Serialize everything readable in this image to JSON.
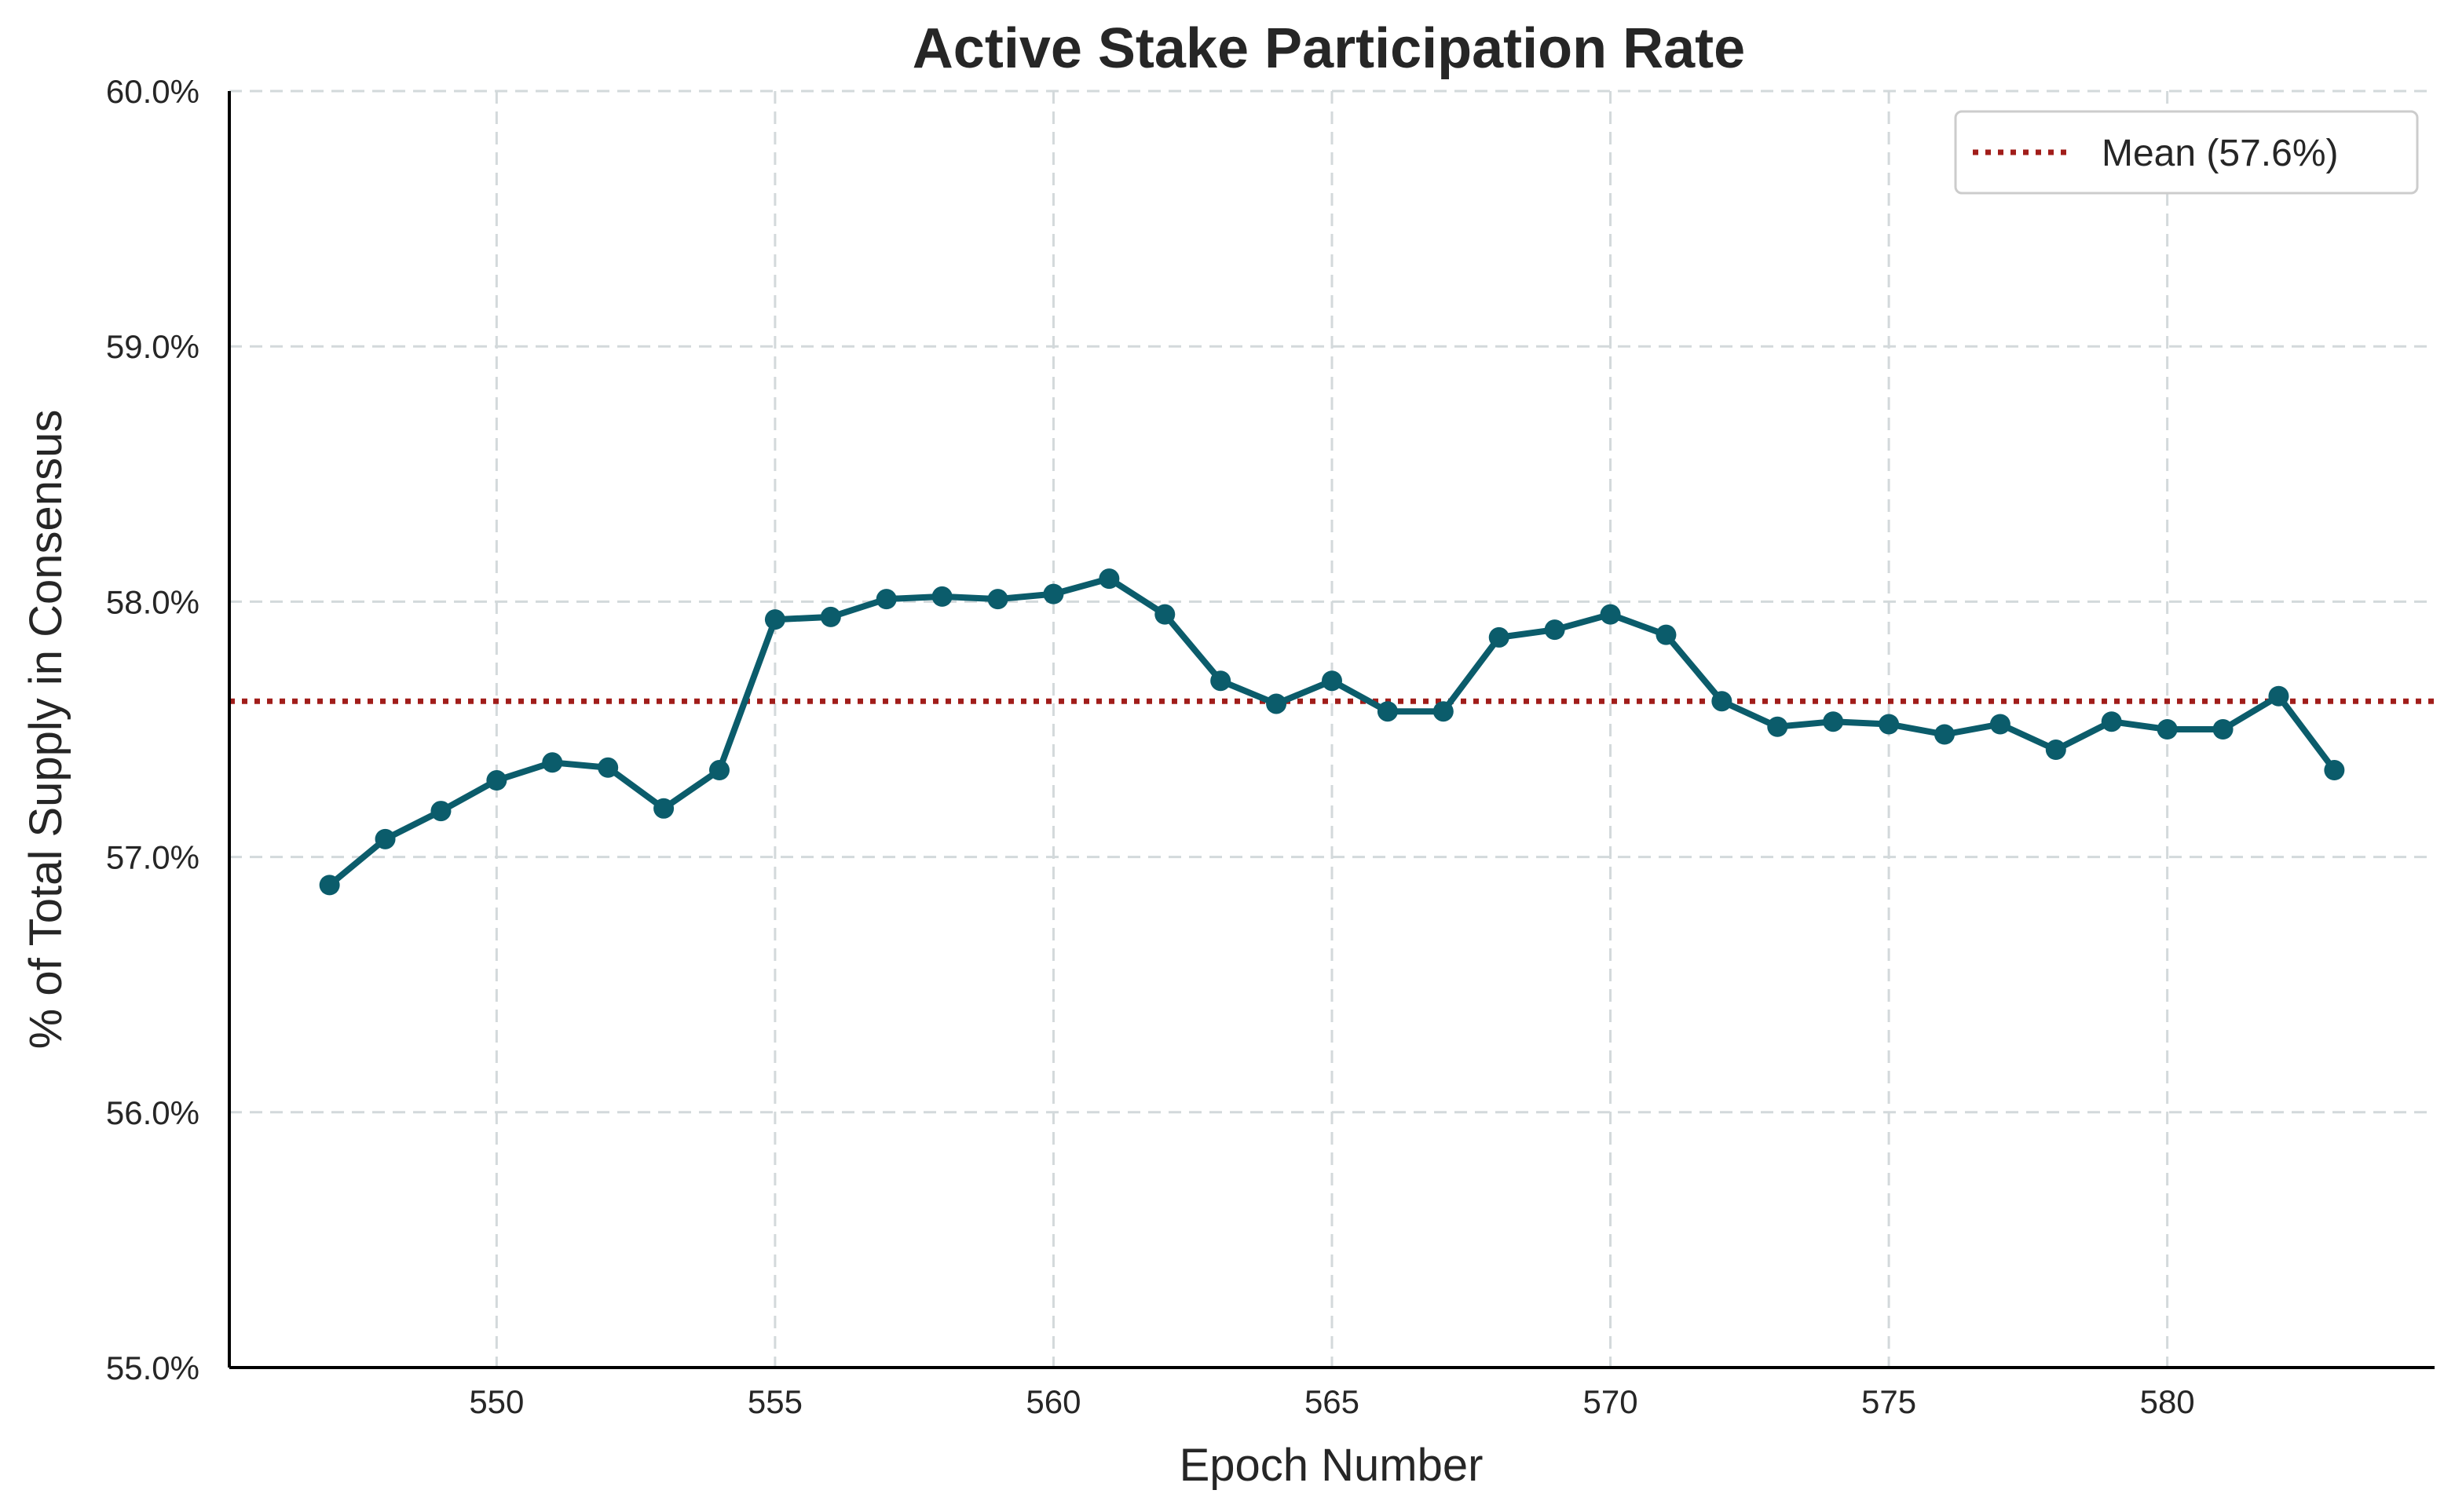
{
  "chart_data": {
    "type": "line",
    "title": "Active Stake Participation Rate",
    "xlabel": "Epoch Number",
    "ylabel": "% of Total Supply in Consensus",
    "xlim": [
      545.2,
      584.8
    ],
    "ylim": [
      55.0,
      60.0
    ],
    "x_ticks": [
      550,
      555,
      560,
      565,
      570,
      575,
      580
    ],
    "y_ticks": [
      55.0,
      56.0,
      57.0,
      58.0,
      59.0,
      60.0
    ],
    "y_tick_labels": [
      "55.0%",
      "56.0%",
      "57.0%",
      "58.0%",
      "59.0%",
      "60.0%"
    ],
    "grid": true,
    "legend": {
      "placement": "top-right",
      "entries": [
        "Mean (57.6%)"
      ]
    },
    "mean_line": {
      "value": 57.61,
      "label": "Mean (57.6%)",
      "color": "#a11d1a"
    },
    "series": [
      {
        "color": "#0b5c6b",
        "x": [
          547,
          548,
          549,
          550,
          551,
          552,
          553,
          554,
          555,
          556,
          557,
          558,
          559,
          560,
          561,
          562,
          563,
          564,
          565,
          566,
          567,
          568,
          569,
          570,
          571,
          572,
          573,
          574,
          575,
          576,
          577,
          578,
          579,
          580,
          581,
          582,
          583
        ],
        "values": [
          56.89,
          57.07,
          57.18,
          57.3,
          57.37,
          57.35,
          57.19,
          57.34,
          57.93,
          57.94,
          58.01,
          58.02,
          58.01,
          58.03,
          58.09,
          57.95,
          57.69,
          57.6,
          57.69,
          57.57,
          57.57,
          57.86,
          57.89,
          57.95,
          57.87,
          57.61,
          57.51,
          57.53,
          57.52,
          57.48,
          57.52,
          57.42,
          57.53,
          57.5,
          57.5,
          57.63,
          57.34
        ]
      }
    ]
  }
}
